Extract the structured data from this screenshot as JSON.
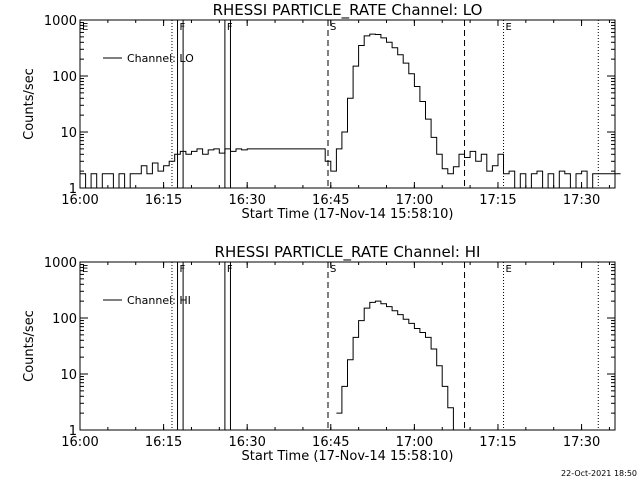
{
  "footer_stamp": "22-Oct-2021 18:50",
  "chart_data": [
    {
      "type": "line",
      "title": "RHESSI PARTICLE_RATE Channel: LO",
      "xlabel": "Start Time (17-Nov-14 15:58:10)",
      "ylabel": "Counts/sec",
      "yscale": "log",
      "ylim": [
        1,
        1000
      ],
      "xlim": [
        "16:00",
        "17:36"
      ],
      "x_tick_labels": [
        "16:00",
        "16:15",
        "16:30",
        "16:45",
        "17:00",
        "17:15",
        "17:30"
      ],
      "y_tick_labels": [
        "1",
        "10",
        "100",
        "1000"
      ],
      "legend": {
        "placement": "top-left",
        "entries": [
          "Channel: LO"
        ]
      },
      "markers": [
        {
          "label": "E",
          "x": "16:00",
          "style": "dotted"
        },
        {
          "label": "",
          "x": "16:16.5",
          "style": "dotted"
        },
        {
          "label": "F",
          "x": "16:17.5",
          "style": "solid"
        },
        {
          "label": "",
          "x": "16:18.5",
          "style": "solid"
        },
        {
          "label": "F",
          "x": "16:26",
          "style": "solid"
        },
        {
          "label": "",
          "x": "16:27",
          "style": "solid"
        },
        {
          "label": "S",
          "x": "16:44.5",
          "style": "dashed"
        },
        {
          "label": "",
          "x": "17:09",
          "style": "dashed"
        },
        {
          "label": "E",
          "x": "17:16",
          "style": "dotted"
        },
        {
          "label": "",
          "x": "17:33",
          "style": "dotted"
        }
      ],
      "series": [
        {
          "name": "Channel: LO",
          "x": [
            "16:00",
            "16:01",
            "16:02",
            "16:03",
            "16:04",
            "16:05",
            "16:06",
            "16:07",
            "16:08",
            "16:09",
            "16:10",
            "16:11",
            "16:12",
            "16:13",
            "16:14",
            "16:15",
            "16:16",
            "16:17",
            "16:18",
            "16:19",
            "16:20",
            "16:21",
            "16:22",
            "16:23",
            "16:24",
            "16:25",
            "16:26",
            "16:27",
            "16:28",
            "16:29",
            "16:30",
            "16:31",
            "16:32",
            "16:33",
            "16:34",
            "16:35",
            "16:36",
            "16:37",
            "16:38",
            "16:39",
            "16:40",
            "16:41",
            "16:42",
            "16:43",
            "16:44",
            "16:45",
            "16:46",
            "16:47",
            "16:48",
            "16:49",
            "16:50",
            "16:51",
            "16:52",
            "16:53",
            "16:54",
            "16:55",
            "16:56",
            "16:57",
            "16:58",
            "16:59",
            "17:00",
            "17:01",
            "17:02",
            "17:03",
            "17:04",
            "17:05",
            "17:06",
            "17:07",
            "17:08",
            "17:09",
            "17:10",
            "17:11",
            "17:12",
            "17:13",
            "17:14",
            "17:15",
            "17:16",
            "17:17",
            "17:18",
            "17:19",
            "17:20",
            "17:21",
            "17:22",
            "17:23",
            "17:24",
            "17:25",
            "17:26",
            "17:27",
            "17:28",
            "17:29",
            "17:30",
            "17:31",
            "17:32",
            "17:33",
            "17:34",
            "17:35",
            "17:36"
          ],
          "values": [
            1.8,
            1,
            1.8,
            1,
            1.8,
            1.8,
            1,
            1.8,
            1,
            1.8,
            1.8,
            2.5,
            1.8,
            2.8,
            2,
            2.5,
            3,
            4,
            4.5,
            4,
            4.5,
            5,
            4,
            4.8,
            5,
            4.2,
            5,
            4.5,
            5,
            4.8,
            5,
            5,
            5,
            5,
            5,
            5,
            5,
            5,
            5,
            5,
            5,
            5,
            5,
            5,
            3,
            2,
            5,
            10,
            40,
            150,
            350,
            520,
            560,
            550,
            480,
            400,
            320,
            240,
            170,
            110,
            65,
            35,
            17,
            8,
            4,
            2.2,
            1.8,
            2.4,
            4,
            3.5,
            4.5,
            3,
            4,
            2,
            2.5,
            4,
            1.8,
            2,
            1,
            1.8,
            1,
            1.8,
            2,
            1,
            1.8,
            1,
            2,
            1.8,
            1,
            1.8,
            2,
            1,
            1.8,
            1.8,
            1.8,
            1.8,
            1.8
          ]
        }
      ]
    },
    {
      "type": "line",
      "title": "RHESSI PARTICLE_RATE Channel: HI",
      "xlabel": "Start Time (17-Nov-14 15:58:10)",
      "ylabel": "Counts/sec",
      "yscale": "log",
      "ylim": [
        1,
        1000
      ],
      "xlim": [
        "16:00",
        "17:36"
      ],
      "x_tick_labels": [
        "16:00",
        "16:15",
        "16:30",
        "16:45",
        "17:00",
        "17:15",
        "17:30"
      ],
      "y_tick_labels": [
        "1",
        "10",
        "100",
        "1000"
      ],
      "legend": {
        "placement": "top-left",
        "entries": [
          "Channel: HI"
        ]
      },
      "markers": [
        {
          "label": "E",
          "x": "16:00",
          "style": "dotted"
        },
        {
          "label": "",
          "x": "16:16.5",
          "style": "dotted"
        },
        {
          "label": "F",
          "x": "16:17.5",
          "style": "solid"
        },
        {
          "label": "",
          "x": "16:18.5",
          "style": "solid"
        },
        {
          "label": "F",
          "x": "16:26",
          "style": "solid"
        },
        {
          "label": "",
          "x": "16:27",
          "style": "solid"
        },
        {
          "label": "S",
          "x": "16:44.5",
          "style": "dashed"
        },
        {
          "label": "",
          "x": "17:09",
          "style": "dashed"
        },
        {
          "label": "E",
          "x": "17:16",
          "style": "dotted"
        },
        {
          "label": "",
          "x": "17:33",
          "style": "dotted"
        }
      ],
      "series": [
        {
          "name": "Channel: HI",
          "x": [
            "16:46",
            "16:47",
            "16:48",
            "16:49",
            "16:50",
            "16:51",
            "16:52",
            "16:53",
            "16:54",
            "16:55",
            "16:56",
            "16:57",
            "16:58",
            "16:59",
            "17:00",
            "17:01",
            "17:02",
            "17:03",
            "17:04",
            "17:05",
            "17:06",
            "17:07"
          ],
          "values": [
            2,
            6,
            18,
            45,
            90,
            150,
            190,
            200,
            180,
            160,
            135,
            115,
            95,
            80,
            65,
            55,
            45,
            28,
            14,
            6,
            2.5,
            1
          ]
        }
      ]
    }
  ]
}
